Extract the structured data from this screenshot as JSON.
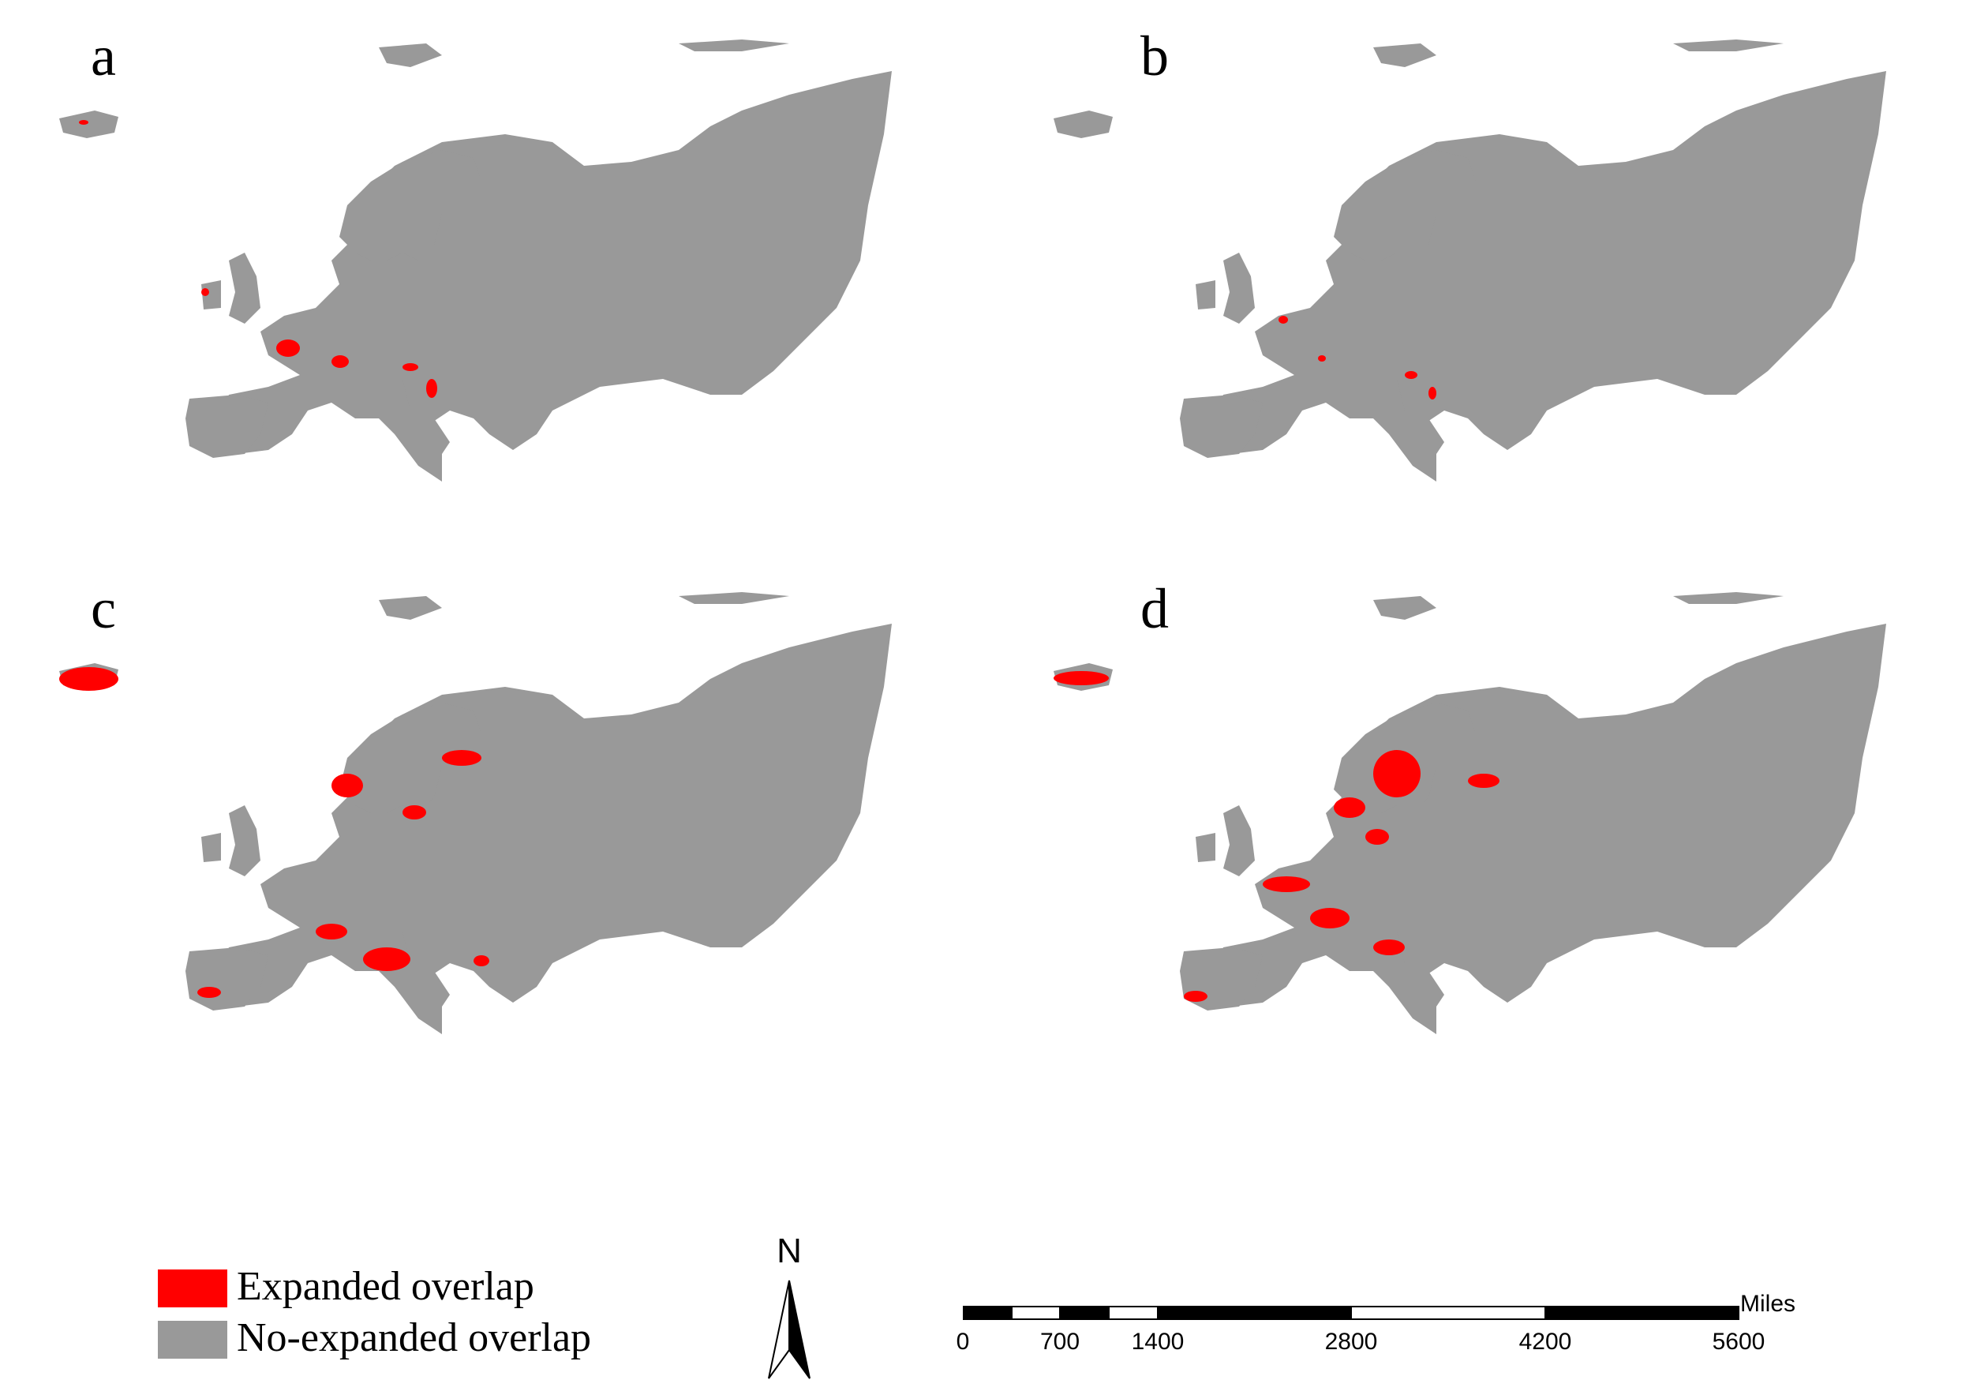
{
  "colors": {
    "expanded": "#ff0000",
    "no_expanded": "#999999",
    "background": "#ffffff"
  },
  "panels": [
    {
      "label": "a"
    },
    {
      "label": "b"
    },
    {
      "label": "c"
    },
    {
      "label": "d"
    }
  ],
  "legend": {
    "expanded": "Expanded overlap",
    "no_expanded": "No-expanded overlap"
  },
  "north_arrow": {
    "label": "N",
    "icon": "north-arrow-icon"
  },
  "scale_bar": {
    "unit": "Miles",
    "ticks": [
      "0",
      "700",
      "1400",
      "2800",
      "4200",
      "5600"
    ]
  }
}
